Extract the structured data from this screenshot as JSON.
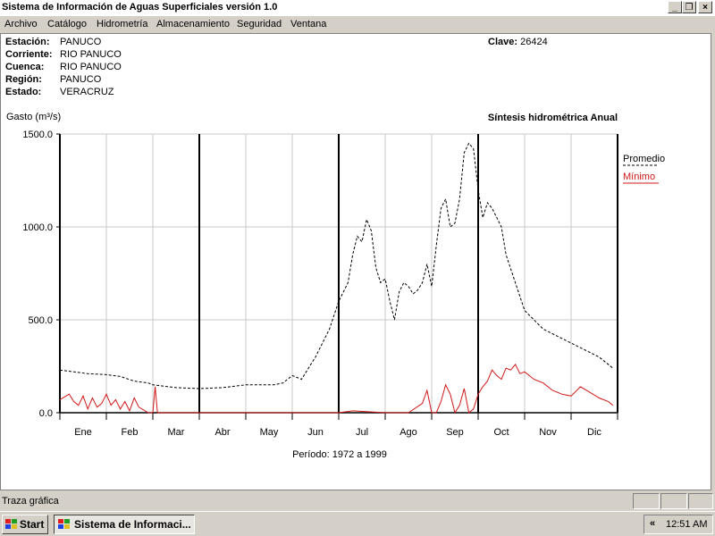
{
  "window": {
    "title": "Sistema de Información de Aguas Superficiales  versión 1.0",
    "minimize_glyph": "_",
    "restore_glyph": "❐",
    "close_glyph": "×"
  },
  "menu": [
    "Archivo",
    "Catálogo",
    "Hidrometría",
    "Almacenamiento",
    "Seguridad",
    "Ventana"
  ],
  "station": {
    "rows": [
      {
        "label": "Estación:",
        "value": "PANUCO"
      },
      {
        "label": "Corriente:",
        "value": "RIO PANUCO"
      },
      {
        "label": "Cuenca:",
        "value": "RIO PANUCO"
      },
      {
        "label": "Región:",
        "value": "PANUCO"
      },
      {
        "label": "Estado:",
        "value": "VERACRUZ"
      }
    ],
    "clave_label": "Clave:",
    "clave_value": "26424"
  },
  "chart_heading": "Síntesis hidrométrica   Anual",
  "period": "Período:  1972 a 1999",
  "chart_data": {
    "type": "line",
    "ylabel": "Gasto (m³/s)",
    "ylim": [
      0,
      1500
    ],
    "yticks": [
      "1500.0",
      "1000.0",
      "500.0",
      "0.0"
    ],
    "ytick_values": [
      1500,
      1000,
      500,
      0
    ],
    "months": [
      "Ene",
      "Feb",
      "Mar",
      "Abr",
      "May",
      "Jun",
      "Jul",
      "Ago",
      "Sep",
      "Oct",
      "Nov",
      "Dic"
    ],
    "grid": true,
    "legend_position": "right",
    "series": [
      {
        "name": "Promedio",
        "color": "#000000",
        "dash": true,
        "x": [
          0,
          0.3,
          0.6,
          1,
          1.3,
          1.6,
          1.9,
          2,
          2.5,
          3,
          3.5,
          4,
          4.3,
          4.6,
          4.8,
          5,
          5.2,
          5.3,
          5.5,
          5.8,
          6,
          6.2,
          6.3,
          6.4,
          6.5,
          6.6,
          6.7,
          6.8,
          6.9,
          7,
          7.1,
          7.2,
          7.3,
          7.4,
          7.5,
          7.6,
          7.7,
          7.8,
          7.9,
          8,
          8.1,
          8.2,
          8.3,
          8.4,
          8.5,
          8.6,
          8.7,
          8.8,
          8.9,
          9,
          9.1,
          9.2,
          9.3,
          9.5,
          9.6,
          9.8,
          10,
          10.4,
          10.8,
          11.2,
          11.6,
          11.9
        ],
        "values": [
          230,
          220,
          210,
          205,
          195,
          170,
          160,
          150,
          135,
          130,
          135,
          150,
          150,
          150,
          160,
          200,
          180,
          220,
          300,
          450,
          600,
          700,
          850,
          950,
          920,
          1040,
          980,
          780,
          700,
          720,
          600,
          500,
          650,
          700,
          680,
          640,
          660,
          700,
          800,
          680,
          900,
          1100,
          1150,
          1000,
          1020,
          1150,
          1400,
          1450,
          1420,
          1200,
          1050,
          1130,
          1100,
          1000,
          850,
          700,
          550,
          450,
          400,
          350,
          300,
          240
        ]
      },
      {
        "name": "Mínimo",
        "color": "#d01818",
        "dash": false,
        "x": [
          0,
          0.2,
          0.3,
          0.4,
          0.5,
          0.6,
          0.7,
          0.8,
          0.9,
          1.0,
          1.1,
          1.2,
          1.3,
          1.4,
          1.5,
          1.6,
          1.7,
          1.9,
          2.0,
          2.05,
          2.1,
          3,
          4,
          5,
          6,
          6.3,
          7,
          7.5,
          7.8,
          7.9,
          8,
          8.1,
          8.2,
          8.3,
          8.4,
          8.5,
          8.6,
          8.7,
          8.8,
          8.9,
          9,
          9.1,
          9.2,
          9.3,
          9.4,
          9.5,
          9.6,
          9.7,
          9.8,
          9.9,
          10,
          10.2,
          10.4,
          10.6,
          10.8,
          11,
          11.2,
          11.4,
          11.6,
          11.8,
          11.9
        ],
        "values": [
          70,
          100,
          60,
          40,
          90,
          20,
          80,
          30,
          50,
          100,
          40,
          70,
          20,
          60,
          10,
          80,
          30,
          0,
          0,
          140,
          0,
          0,
          0,
          0,
          0,
          10,
          0,
          0,
          50,
          120,
          0,
          0,
          60,
          150,
          100,
          0,
          40,
          130,
          0,
          20,
          100,
          140,
          170,
          230,
          200,
          180,
          240,
          230,
          260,
          210,
          220,
          180,
          160,
          120,
          100,
          90,
          140,
          110,
          80,
          60,
          40
        ]
      }
    ]
  },
  "status_text": "Traza gráfica",
  "taskbar": {
    "start_label": "Start",
    "task_label": "Sistema de Informaci...",
    "clock": "12:51 AM",
    "chevron": "«"
  }
}
